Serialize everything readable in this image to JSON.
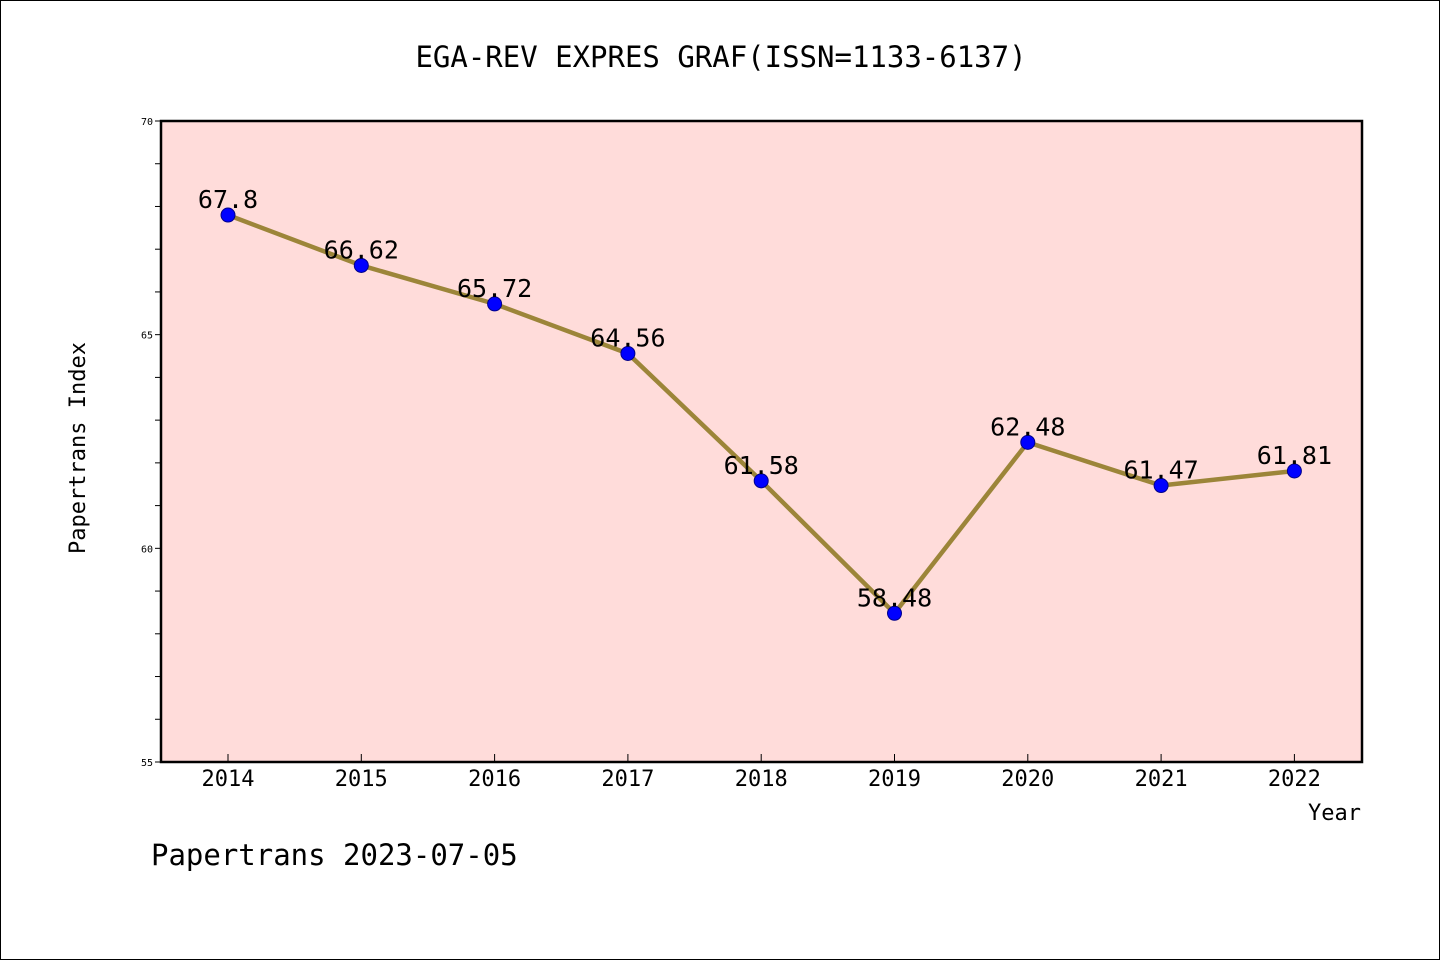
{
  "chart_data": {
    "type": "line",
    "title": "EGA-REV EXPRES GRAF(ISSN=1133-6137)",
    "xlabel": "Year",
    "ylabel": "Papertrans Index",
    "categories": [
      "2014",
      "2015",
      "2016",
      "2017",
      "2018",
      "2019",
      "2020",
      "2021",
      "2022"
    ],
    "values": [
      67.8,
      66.62,
      65.72,
      64.56,
      61.58,
      58.48,
      62.48,
      61.47,
      61.81
    ],
    "data_labels": [
      "67.8",
      "66.62",
      "65.72",
      "64.56",
      "61.58",
      "58.48",
      "62.48",
      "61.47",
      "61.81"
    ],
    "ylim": [
      55,
      70
    ],
    "yticks": [
      "55",
      "60",
      "65",
      "70"
    ],
    "grid": false,
    "plot_background": "#FFDCDA",
    "line_color": "#9C8539",
    "marker_color": "#0000FF"
  },
  "footer": "Papertrans 2023-07-05"
}
